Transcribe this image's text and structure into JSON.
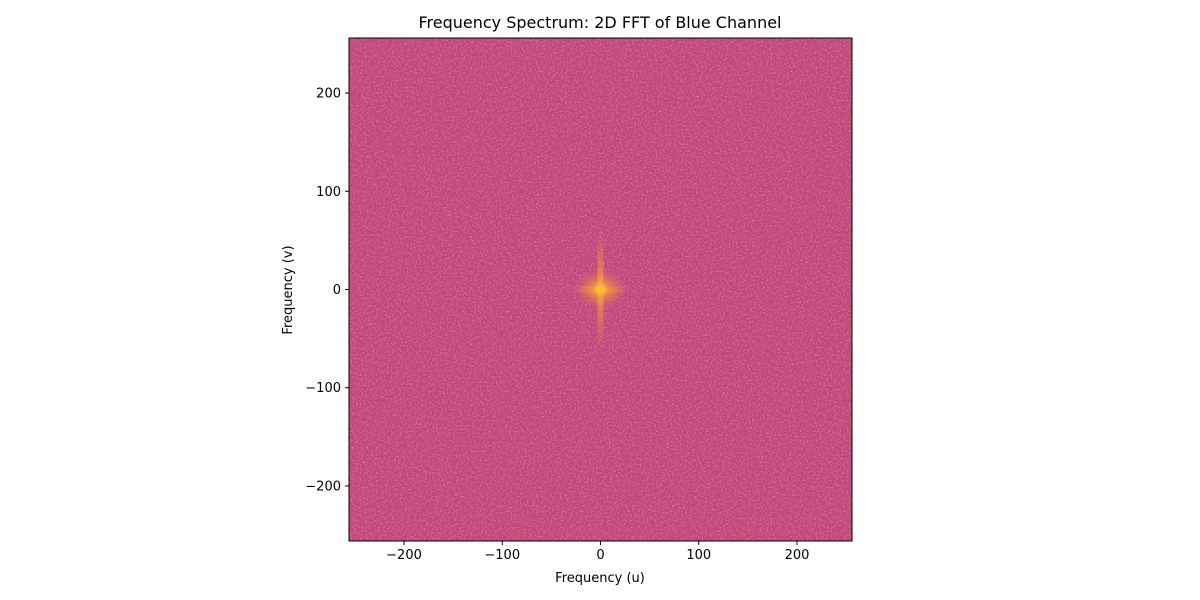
{
  "chart_data": {
    "type": "heatmap",
    "title": "Frequency Spectrum: 2D FFT of Blue Channel",
    "xlabel": "Frequency (u)",
    "ylabel": "Frequency (v)",
    "xlim": [
      -256,
      256
    ],
    "ylim": [
      -256,
      256
    ],
    "xticks": [
      -200,
      -100,
      0,
      100,
      200
    ],
    "yticks": [
      -200,
      -100,
      0,
      100,
      200
    ],
    "grid": false,
    "colormap": "plasma",
    "background_color": "#c0447a",
    "peak": {
      "u": 0,
      "v": 0,
      "color": "#f4c21b"
    },
    "low_frequency_core": {
      "u_halfwidth": 28,
      "v_halfwidth": 22,
      "color": "#e97e45"
    },
    "vertical_streak": {
      "u": 0,
      "v_extent": 60
    },
    "horizontal_streak": {
      "v": 0,
      "u_extent": 30
    }
  }
}
